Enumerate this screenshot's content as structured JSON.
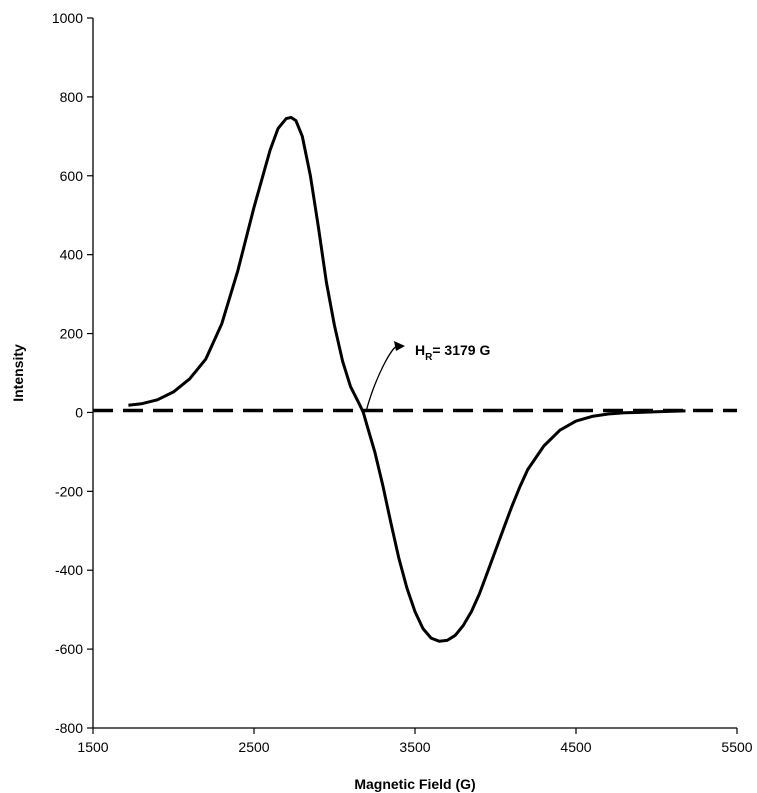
{
  "chart_data": {
    "type": "line",
    "title": "",
    "xlabel": "Magnetic Field (G)",
    "ylabel": "Intensity",
    "xlim": [
      1500,
      5500
    ],
    "ylim": [
      -800,
      1000
    ],
    "x_ticks": [
      1500,
      2500,
      3500,
      4500,
      5500
    ],
    "y_ticks": [
      -800,
      -600,
      -400,
      -200,
      0,
      200,
      400,
      600,
      800,
      1000
    ],
    "grid": false,
    "legend": "none",
    "series": [
      {
        "color": "#000000",
        "style": "solid",
        "x": [
          1720,
          1800,
          1900,
          2000,
          2100,
          2200,
          2300,
          2400,
          2500,
          2600,
          2650,
          2700,
          2730,
          2760,
          2800,
          2850,
          2900,
          2950,
          3000,
          3050,
          3100,
          3150,
          3179,
          3200,
          3250,
          3300,
          3350,
          3400,
          3450,
          3500,
          3550,
          3600,
          3650,
          3700,
          3750,
          3800,
          3850,
          3900,
          3950,
          4000,
          4050,
          4100,
          4150,
          4200,
          4300,
          4400,
          4500,
          4600,
          4700,
          4800,
          4900,
          5000,
          5100,
          5180
        ],
        "y": [
          18,
          22,
          32,
          52,
          85,
          135,
          225,
          360,
          520,
          665,
          720,
          745,
          748,
          740,
          700,
          600,
          470,
          330,
          220,
          130,
          65,
          25,
          0,
          -30,
          -100,
          -185,
          -280,
          -370,
          -445,
          -505,
          -548,
          -572,
          -580,
          -578,
          -565,
          -540,
          -505,
          -460,
          -405,
          -350,
          -295,
          -240,
          -190,
          -145,
          -85,
          -45,
          -22,
          -10,
          -4,
          -1,
          0,
          2,
          3,
          4
        ]
      },
      {
        "color": "#000000",
        "style": "dashed",
        "x": [
          1500,
          5500
        ],
        "y": [
          5,
          5
        ]
      }
    ],
    "annotations": [
      {
        "text": "H",
        "subscript": "R",
        "text_after": "= 3179 G",
        "x_data": 3179,
        "y_data": 0
      }
    ]
  }
}
